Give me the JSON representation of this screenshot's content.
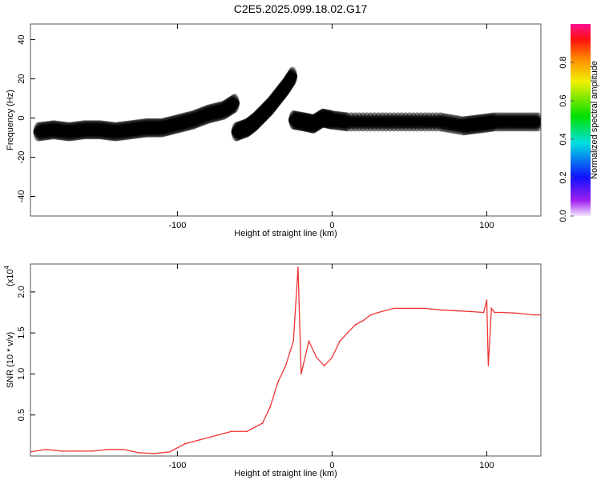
{
  "title": "C2E5.2025.099.18.02.G17",
  "chart_data": [
    {
      "type": "heatmap",
      "title": "C2E5.2025.099.18.02.G17",
      "xlabel": "Height of straight line (km)",
      "ylabel": "Frequency (Hz)",
      "xlim": [
        -195,
        135
      ],
      "ylim": [
        -50,
        48
      ],
      "xticks": [
        {
          "v": -100,
          "label": "-100"
        },
        {
          "v": 0,
          "label": "0"
        },
        {
          "v": 100,
          "label": "100"
        }
      ],
      "yticks": [
        {
          "v": -40,
          "label": "-40"
        },
        {
          "v": -20,
          "label": "-20"
        },
        {
          "v": 0,
          "label": "0"
        },
        {
          "v": 20,
          "label": "20"
        },
        {
          "v": 40,
          "label": "40"
        }
      ],
      "colorbar": {
        "label": "Normalized spectral amplitude",
        "range": [
          0,
          1
        ],
        "ticks": [
          "0.0",
          "0.2",
          "0.4",
          "0.6",
          "0.8"
        ]
      },
      "ridge": [
        [
          -190,
          -7,
          0.35
        ],
        [
          -180,
          -6,
          0.4
        ],
        [
          -170,
          -7,
          0.4
        ],
        [
          -160,
          -6,
          0.35
        ],
        [
          -150,
          -6,
          0.4
        ],
        [
          -140,
          -7,
          0.35
        ],
        [
          -130,
          -6,
          0.4
        ],
        [
          -120,
          -5,
          0.35
        ],
        [
          -110,
          -5,
          0.35
        ],
        [
          -100,
          -3,
          0.4
        ],
        [
          -90,
          -1,
          0.4
        ],
        [
          -80,
          2,
          0.45
        ],
        [
          -70,
          4,
          0.45
        ],
        [
          -62,
          8,
          0.45
        ],
        [
          -62,
          -7,
          0.4
        ],
        [
          -55,
          -5,
          0.45
        ],
        [
          -50,
          -2,
          0.45
        ],
        [
          -45,
          2,
          0.45
        ],
        [
          -40,
          6,
          0.45
        ],
        [
          -35,
          11,
          0.4
        ],
        [
          -30,
          16,
          0.4
        ],
        [
          -25,
          22,
          0.35
        ],
        [
          -25,
          -1,
          0.5
        ],
        [
          -18,
          -2,
          0.6
        ],
        [
          -12,
          -3,
          0.7
        ],
        [
          -6,
          0,
          0.9
        ],
        [
          0,
          -1,
          0.85
        ],
        [
          10,
          -2,
          0.9
        ],
        [
          30,
          -2,
          0.9
        ],
        [
          50,
          -2,
          0.9
        ],
        [
          70,
          -2,
          0.85
        ],
        [
          85,
          -4,
          0.95
        ],
        [
          95,
          -3,
          0.85
        ],
        [
          105,
          -2,
          0.95
        ],
        [
          120,
          -2,
          0.95
        ],
        [
          135,
          -2,
          0.85
        ]
      ]
    },
    {
      "type": "line",
      "xlabel": "Height of straight line (km)",
      "ylabel": "SNR (10 * v/v)",
      "yscale_label": "(x10^4)",
      "scale_text": "(x10",
      "scale_exp": "4",
      "xlim": [
        -195,
        135
      ],
      "ylim": [
        0,
        2.34
      ],
      "color": "#ee3333",
      "xticks": [
        {
          "v": -100,
          "label": "-100"
        },
        {
          "v": 0,
          "label": "0"
        },
        {
          "v": 100,
          "label": "100"
        }
      ],
      "yticks": [
        {
          "v": 0.5,
          "label": "0.5"
        },
        {
          "v": 1.0,
          "label": "1.0"
        },
        {
          "v": 1.5,
          "label": "1.5"
        },
        {
          "v": 2.0,
          "label": "2.0"
        }
      ],
      "x": [
        -195,
        -185,
        -175,
        -165,
        -155,
        -145,
        -135,
        -125,
        -115,
        -105,
        -95,
        -85,
        -75,
        -65,
        -55,
        -45,
        -40,
        -35,
        -30,
        -25,
        -22,
        -20,
        -15,
        -10,
        -5,
        0,
        5,
        10,
        15,
        20,
        25,
        30,
        40,
        50,
        60,
        70,
        80,
        90,
        98,
        100,
        101,
        103,
        105,
        110,
        120,
        130,
        135
      ],
      "y": [
        0.05,
        0.08,
        0.06,
        0.06,
        0.06,
        0.08,
        0.08,
        0.04,
        0.03,
        0.05,
        0.15,
        0.2,
        0.25,
        0.3,
        0.3,
        0.4,
        0.6,
        0.9,
        1.1,
        1.4,
        2.3,
        1.0,
        1.4,
        1.2,
        1.1,
        1.2,
        1.4,
        1.5,
        1.6,
        1.65,
        1.72,
        1.75,
        1.8,
        1.8,
        1.8,
        1.78,
        1.77,
        1.76,
        1.75,
        1.9,
        1.1,
        1.8,
        1.75,
        1.75,
        1.74,
        1.72,
        1.72
      ]
    }
  ]
}
